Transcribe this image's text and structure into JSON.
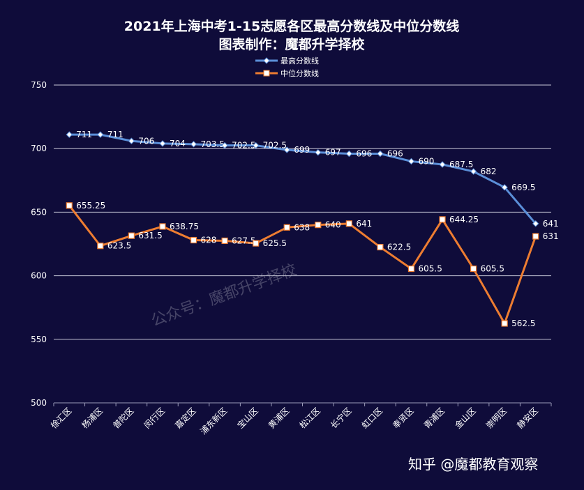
{
  "chart_data": {
    "type": "line",
    "title": "2021年上海中考1-15志愿各区最高分数线及中位分数线",
    "subtitle": "图表制作：魔都升学择校",
    "categories": [
      "徐汇区",
      "杨浦区",
      "普陀区",
      "闵行区",
      "嘉定区",
      "浦东新区",
      "宝山区",
      "黄浦区",
      "松江区",
      "长宁区",
      "虹口区",
      "奉贤区",
      "青浦区",
      "金山区",
      "崇明区",
      "静安区"
    ],
    "series": [
      {
        "name": "最高分数线",
        "color": "#5b8fd8",
        "marker": "diamond",
        "values": [
          711,
          711,
          706,
          704,
          703.5,
          702.5,
          702.5,
          699,
          697,
          696,
          696,
          690,
          687.5,
          682,
          669.5,
          641
        ],
        "labels": [
          "711",
          "711",
          "706",
          "704",
          "703.5",
          "702.5",
          "702.5",
          "699",
          "697",
          "696",
          "696",
          "690",
          "687.5",
          "682",
          "669.5",
          "641"
        ]
      },
      {
        "name": "中位分数线",
        "color": "#ed7d31",
        "marker": "square",
        "values": [
          655.25,
          623.5,
          631.5,
          638.75,
          628,
          627.5,
          625.5,
          638,
          640,
          641,
          622.5,
          605.5,
          644.25,
          605.5,
          562.5,
          631
        ],
        "labels": [
          "655.25",
          "623.5",
          "631.5",
          "638.75",
          "628",
          "627.5",
          "625.5",
          "638",
          "640",
          "641",
          "622.5",
          "605.5",
          "644.25",
          "605.5",
          "562.5",
          "631"
        ]
      }
    ],
    "ylim": [
      500,
      750
    ],
    "yticks": [
      "500",
      "550",
      "600",
      "650",
      "700",
      "750"
    ],
    "grid": true,
    "legend_position": "top-center"
  },
  "watermark": "公众号：魔都升学择校",
  "footer_brand": "知乎 @魔都教育观察"
}
